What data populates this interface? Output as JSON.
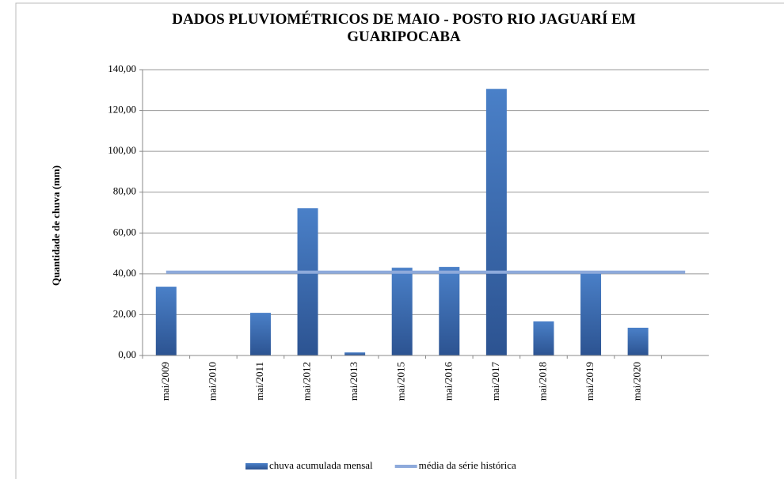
{
  "chart_data": {
    "type": "bar",
    "title": "DADOS PLUVIOMÉTRICOS DE MAIO - POSTO RIO JAGUARÍ EM GUARIPOCABA",
    "y_label": "Quantidade de chuva (mm)",
    "categories": [
      "mai/2009",
      "mai/2010",
      "mai/2011",
      "mai/2012",
      "mai/2013",
      "mai/2015",
      "mai/2016",
      "mai/2017",
      "mai/2018",
      "mai/2019",
      "mai/2020",
      null
    ],
    "series": [
      {
        "name": "chuva acumulada mensal",
        "type": "bar",
        "color": "#3a6fb5",
        "values": [
          33.7,
          0,
          20.9,
          72.1,
          1.5,
          43.0,
          43.4,
          130.6,
          16.7,
          41.0,
          13.6,
          null
        ]
      },
      {
        "name": "média da série histórica",
        "type": "line",
        "color": "#8eaadb",
        "values": [
          40.8,
          40.8,
          40.8,
          40.8,
          40.8,
          40.8,
          40.8,
          40.8,
          40.8,
          40.8,
          40.8,
          40.8
        ]
      }
    ],
    "ylim": [
      0,
      140
    ],
    "yticks": [
      {
        "value": 0,
        "label": "0,00"
      },
      {
        "value": 20,
        "label": "20,00"
      },
      {
        "value": 40,
        "label": "40,00"
      },
      {
        "value": 60,
        "label": "60,00"
      },
      {
        "value": 80,
        "label": "80,00"
      },
      {
        "value": 100,
        "label": "100,00"
      },
      {
        "value": 120,
        "label": "120,00"
      },
      {
        "value": 140,
        "label": "140,00"
      }
    ],
    "grid": true,
    "legend": "bottom"
  }
}
